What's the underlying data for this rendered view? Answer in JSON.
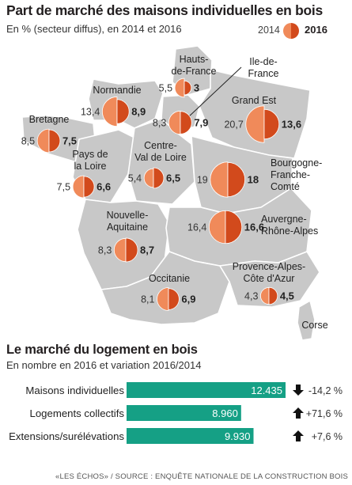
{
  "title": "Part de marché des maisons individuelles en bois",
  "subtitle": "En % (secteur diffus), en 2014 et 2016",
  "legend": {
    "year_a": "2014",
    "year_b": "2016"
  },
  "colors": {
    "color_2014": "#f08a5a",
    "color_2016": "#d24a1c",
    "map_fill": "#c8c8c8",
    "map_stroke": "#ffffff",
    "bar_fill": "#15a085",
    "pie_stroke": "#ffffff"
  },
  "regions": [
    {
      "name": "Hauts-de-France",
      "label_lines": [
        "Hauts-",
        "de-France"
      ],
      "v2014": "5,5",
      "v2016": "3"
    },
    {
      "name": "Île-de-France",
      "label_lines": [
        "Ile-de-",
        "France"
      ],
      "v2014": "8,3",
      "v2016": "7,9"
    },
    {
      "name": "Normandie",
      "label_lines": [
        "Normandie"
      ],
      "v2014": "13,4",
      "v2016": "8,9"
    },
    {
      "name": "Grand Est",
      "label_lines": [
        "Grand Est"
      ],
      "v2014": "20,7",
      "v2016": "13,6"
    },
    {
      "name": "Bretagne",
      "label_lines": [
        "Bretagne"
      ],
      "v2014": "8,5",
      "v2016": "7,5"
    },
    {
      "name": "Pays de la Loire",
      "label_lines": [
        "Pays de",
        "la Loire"
      ],
      "v2014": "7,5",
      "v2016": "6,6"
    },
    {
      "name": "Centre-Val de Loire",
      "label_lines": [
        "Centre-",
        "Val de Loire"
      ],
      "v2014": "5,4",
      "v2016": "6,5"
    },
    {
      "name": "Bourgogne-Franche-Comté",
      "label_lines": [
        "Bourgogne-",
        "Franche-",
        "Comté"
      ],
      "v2014": "19",
      "v2016": "18"
    },
    {
      "name": "Nouvelle-Aquitaine",
      "label_lines": [
        "Nouvelle-",
        "Aquitaine"
      ],
      "v2014": "8,3",
      "v2016": "8,7"
    },
    {
      "name": "Auvergne-Rhône-Alpes",
      "label_lines": [
        "Auvergne-",
        "Rhône-Alpes"
      ],
      "v2014": "16,4",
      "v2016": "16,6"
    },
    {
      "name": "Occitanie",
      "label_lines": [
        "Occitanie"
      ],
      "v2014": "8,1",
      "v2016": "6,9"
    },
    {
      "name": "Provence-Alpes-Côte d'Azur",
      "label_lines": [
        "Provence-Alpes-",
        "Côte d'Azur"
      ],
      "v2014": "4,3",
      "v2016": "4,5"
    },
    {
      "name": "Corse",
      "label_lines": [
        "Corse"
      ],
      "v2014": "",
      "v2016": ""
    }
  ],
  "chart_data": [
    {
      "type": "pie",
      "title": "Part de marché des maisons individuelles en bois",
      "subtitle": "En % (secteur diffus), en 2014 et 2016",
      "unit": "%",
      "series_names": [
        "2014",
        "2016"
      ],
      "regions": [
        {
          "region": "Hauts-de-France",
          "2014": 5.5,
          "2016": 3
        },
        {
          "region": "Île-de-France",
          "2014": 8.3,
          "2016": 7.9
        },
        {
          "region": "Normandie",
          "2014": 13.4,
          "2016": 8.9
        },
        {
          "region": "Grand Est",
          "2014": 20.7,
          "2016": 13.6
        },
        {
          "region": "Bretagne",
          "2014": 8.5,
          "2016": 7.5
        },
        {
          "region": "Pays de la Loire",
          "2014": 7.5,
          "2016": 6.6
        },
        {
          "region": "Centre-Val de Loire",
          "2014": 5.4,
          "2016": 6.5
        },
        {
          "region": "Bourgogne-Franche-Comté",
          "2014": 19,
          "2016": 18
        },
        {
          "region": "Nouvelle-Aquitaine",
          "2014": 8.3,
          "2016": 8.7
        },
        {
          "region": "Auvergne-Rhône-Alpes",
          "2014": 16.4,
          "2016": 16.6
        },
        {
          "region": "Occitanie",
          "2014": 8.1,
          "2016": 6.9
        },
        {
          "region": "Provence-Alpes-Côte d'Azur",
          "2014": 4.3,
          "2016": 4.5
        }
      ]
    },
    {
      "type": "bar",
      "orientation": "horizontal",
      "title": "Le marché du logement en bois",
      "subtitle": "En nombre en 2016 et variation 2016/2014",
      "categories": [
        "Maisons individuelles",
        "Logements collectifs",
        "Extensions/surélévations"
      ],
      "values": [
        12435,
        8960,
        9930
      ],
      "value_labels": [
        "12.435",
        "8.960",
        "9.930"
      ],
      "variation_pct": [
        -14.2,
        71.6,
        7.6
      ],
      "variation_labels": [
        "-14,2 %",
        "+71,6 %",
        "+7,6 %"
      ],
      "variation_direction": [
        "down",
        "up",
        "up"
      ],
      "xlim": [
        0,
        12435
      ]
    }
  ],
  "bar_section": {
    "title": "Le marché du logement en bois",
    "subtitle": "En nombre en 2016 et variation 2016/2014"
  },
  "source": "«LES ÉCHOS» / SOURCE : ENQUÊTE NATIONALE DE LA CONSTRUCTION BOIS"
}
